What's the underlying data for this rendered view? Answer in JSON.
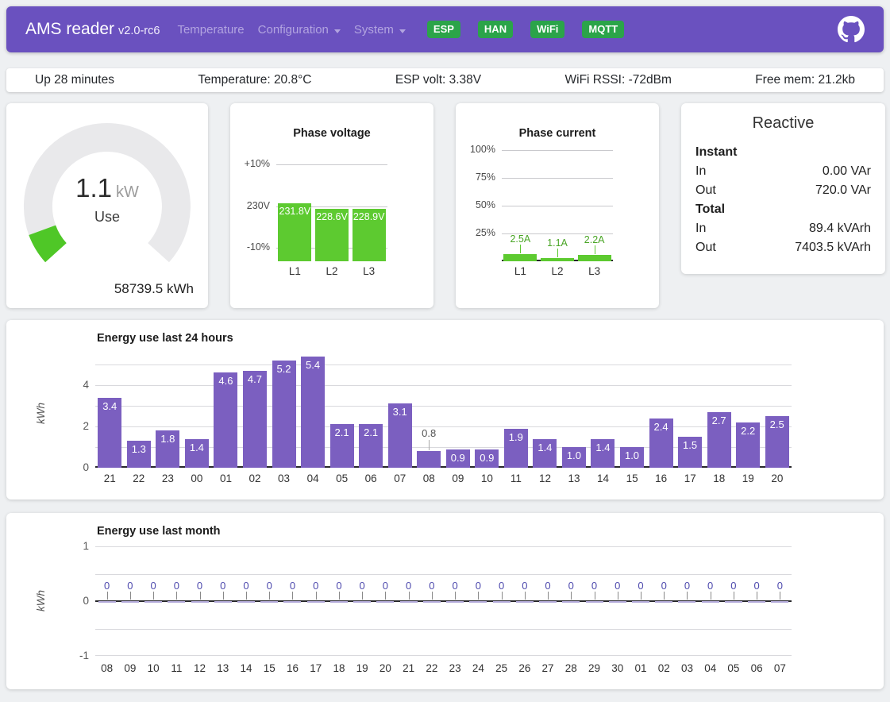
{
  "header": {
    "brand": "AMS reader",
    "version": "v2.0-rc6",
    "nav": [
      {
        "label": "Temperature",
        "dropdown": false
      },
      {
        "label": "Configuration",
        "dropdown": true
      },
      {
        "label": "System",
        "dropdown": true
      }
    ],
    "badges": [
      "ESP",
      "HAN",
      "WiFi",
      "MQTT"
    ],
    "github_icon": "github-octocat"
  },
  "status_bar": [
    "Up 28 minutes",
    "Temperature: 20.8°C",
    "ESP volt: 3.38V",
    "WiFi RSSI: -72dBm",
    "Free mem: 21.2kb"
  ],
  "gauge": {
    "value": "1.1",
    "unit": "kW",
    "label": "Use",
    "total": "58739.5 kWh"
  },
  "reactive": {
    "title": "Reactive",
    "sections": [
      {
        "heading": "Instant",
        "rows": [
          {
            "label": "In",
            "value": "0.00 VAr"
          },
          {
            "label": "Out",
            "value": "720.0 VAr"
          }
        ]
      },
      {
        "heading": "Total",
        "rows": [
          {
            "label": "In",
            "value": "89.4 kVArh"
          },
          {
            "label": "Out",
            "value": "7403.5 kVArh"
          }
        ]
      }
    ]
  },
  "chart_data": [
    {
      "id": "phase_voltage",
      "type": "bar",
      "title": "Phase voltage",
      "categories": [
        "L1",
        "L2",
        "L3"
      ],
      "values": [
        231.8,
        228.6,
        228.9
      ],
      "value_labels": [
        "231.8V",
        "228.6V",
        "228.9V"
      ],
      "yticks": [
        "+10%",
        "230V",
        "-10%"
      ],
      "ylim": [
        207,
        253
      ],
      "grid": true,
      "legend_position": "none",
      "bar_color": "#5dca30"
    },
    {
      "id": "phase_current",
      "type": "bar",
      "title": "Phase current",
      "categories": [
        "L1",
        "L2",
        "L3"
      ],
      "values": [
        2.5,
        1.1,
        2.2
      ],
      "value_labels": [
        "2.5A",
        "1.1A",
        "2.2A"
      ],
      "yticks": [
        "100%",
        "75%",
        "50%",
        "25%"
      ],
      "ylim": [
        0,
        40
      ],
      "grid": true,
      "legend_position": "none",
      "bar_color": "#5dca30"
    },
    {
      "id": "energy_last_24_hours",
      "type": "bar",
      "title": "Energy use last 24 hours",
      "xlabel": "",
      "ylabel": "kWh",
      "categories": [
        "21",
        "22",
        "23",
        "00",
        "01",
        "02",
        "03",
        "04",
        "05",
        "06",
        "07",
        "08",
        "09",
        "10",
        "11",
        "12",
        "13",
        "14",
        "15",
        "16",
        "17",
        "18",
        "19",
        "20"
      ],
      "values": [
        3.4,
        1.3,
        1.8,
        1.4,
        4.6,
        4.7,
        5.2,
        5.4,
        2.1,
        2.1,
        3.1,
        0.8,
        0.9,
        0.9,
        1.9,
        1.4,
        1.0,
        1.4,
        1.0,
        2.4,
        1.5,
        2.7,
        2.2,
        2.5
      ],
      "yticks": [
        0,
        2,
        4
      ],
      "ylim": [
        0,
        5.6
      ],
      "grid": true,
      "legend_position": "none",
      "bar_color": "#7b5fc0"
    },
    {
      "id": "energy_last_month",
      "type": "bar",
      "title": "Energy use last month",
      "xlabel": "",
      "ylabel": "kWh",
      "categories": [
        "08",
        "09",
        "10",
        "11",
        "12",
        "13",
        "14",
        "15",
        "16",
        "17",
        "18",
        "19",
        "20",
        "21",
        "22",
        "23",
        "24",
        "25",
        "26",
        "27",
        "28",
        "29",
        "30",
        "01",
        "02",
        "03",
        "04",
        "05",
        "06",
        "07"
      ],
      "values": [
        0,
        0,
        0,
        0,
        0,
        0,
        0,
        0,
        0,
        0,
        0,
        0,
        0,
        0,
        0,
        0,
        0,
        0,
        0,
        0,
        0,
        0,
        0,
        0,
        0,
        0,
        0,
        0,
        0,
        0
      ],
      "yticks": [
        1,
        0,
        -1
      ],
      "ylim": [
        -1,
        1
      ],
      "grid": true,
      "legend_position": "none",
      "bar_color": "#7b5fc0"
    }
  ],
  "colors": {
    "header_bg": "#6a51bf",
    "badge_bg": "#2ba449",
    "accent_green": "#5dca30",
    "accent_purple": "#7b5fc0",
    "gauge_ring": "#e9e9eb"
  }
}
